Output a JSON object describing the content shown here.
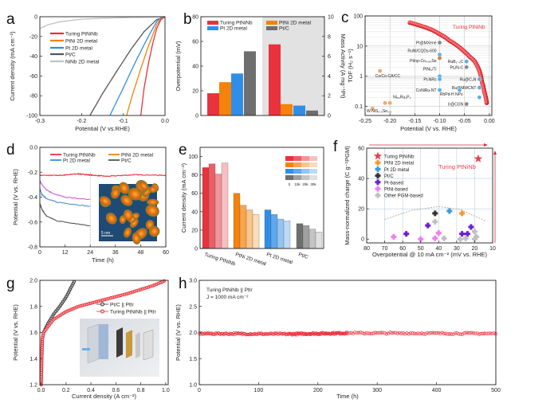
{
  "panel_labels": [
    "a",
    "b",
    "c",
    "d",
    "e",
    "f",
    "g",
    "h"
  ],
  "colors": {
    "turing": "#e8323c",
    "ptni": "#f5820a",
    "pt2d": "#2f8ee8",
    "ptc": "#6e6e6e",
    "ninb": "#c2c2c2"
  },
  "chart_data": [
    {
      "panel": "a",
      "type": "line",
      "xlabel": "Potential (V vs.RHE)",
      "ylabel": "Current density  (mA cm⁻²)",
      "xlim": [
        -0.3,
        0
      ],
      "ylim": [
        -100,
        0
      ],
      "xticks": [
        "-0.3",
        "-0.2",
        "-0.1",
        "0.0"
      ],
      "yticks": [
        "0",
        "-20",
        "-40",
        "-60",
        "-80",
        "-100"
      ],
      "legend": "top-left",
      "series": [
        {
          "name": "Turing PtNiNb",
          "color": "#e8323c",
          "points": [
            [
              0,
              0
            ],
            [
              -0.01,
              -3
            ],
            [
              -0.02,
              -12
            ],
            [
              -0.03,
              -28
            ],
            [
              -0.04,
              -48
            ],
            [
              -0.05,
              -72
            ],
            [
              -0.058,
              -100
            ]
          ]
        },
        {
          "name": "PtNi 2D metal",
          "color": "#f5820a",
          "points": [
            [
              0,
              0
            ],
            [
              -0.01,
              -2
            ],
            [
              -0.02,
              -8
            ],
            [
              -0.04,
              -30
            ],
            [
              -0.06,
              -55
            ],
            [
              -0.08,
              -82
            ],
            [
              -0.092,
              -100
            ]
          ]
        },
        {
          "name": "Pt 2D metal",
          "color": "#2f8ee8",
          "points": [
            [
              0,
              0
            ],
            [
              -0.01,
              -1
            ],
            [
              -0.02,
              -5
            ],
            [
              -0.04,
              -20
            ],
            [
              -0.07,
              -45
            ],
            [
              -0.1,
              -72
            ],
            [
              -0.132,
              -100
            ]
          ]
        },
        {
          "name": "Pt/C",
          "color": "#555555",
          "points": [
            [
              0,
              0
            ],
            [
              -0.02,
              -3
            ],
            [
              -0.05,
              -15
            ],
            [
              -0.08,
              -32
            ],
            [
              -0.12,
              -58
            ],
            [
              -0.15,
              -78
            ],
            [
              -0.18,
              -100
            ]
          ]
        },
        {
          "name": "NiNb 2D metal",
          "color": "#c2c2c2",
          "points": [
            [
              0,
              0
            ],
            [
              -0.05,
              -0.5
            ],
            [
              -0.1,
              -1
            ],
            [
              -0.15,
              -1.5
            ],
            [
              -0.2,
              -2.5
            ],
            [
              -0.25,
              -5
            ],
            [
              -0.28,
              -8
            ],
            [
              -0.3,
              -12
            ]
          ]
        }
      ]
    },
    {
      "panel": "b",
      "type": "bar",
      "ylabel": "Overpotential (mV)",
      "y2label": "Mass Activity (A mg⁻¹Pt)",
      "ylim": [
        0,
        80
      ],
      "y2lim": [
        0,
        10
      ],
      "yticks": [
        "0",
        "20",
        "40",
        "60",
        "80"
      ],
      "y2ticks": [
        "0",
        "2",
        "4",
        "6",
        "8",
        "10"
      ],
      "categories": [
        "Turing PtNiNb",
        "PtNi 2D metal",
        "Pt 2D metal",
        "Pt/C"
      ],
      "colors": [
        "#e8323c",
        "#f5820a",
        "#2f8ee8",
        "#6e6e6e"
      ],
      "overpotential": [
        18,
        27,
        34,
        52
      ],
      "mass_activity": [
        7.2,
        1.15,
        1.0,
        0.5
      ],
      "legend": "top"
    },
    {
      "panel": "c",
      "type": "scatter",
      "xlabel": "Potential (V vs. RHE)",
      "ylabel": "TOF (H₂ s⁻¹)",
      "xlim": [
        -0.25,
        0.005
      ],
      "ylim": [
        0.05,
        100
      ],
      "yscale": "log",
      "grid": true,
      "xticks": [
        "-0.25",
        "-0.20",
        "-0.15",
        "-0.10",
        "-0.05",
        "0.00"
      ],
      "yticks": [
        "0.1",
        "1",
        "10",
        "100"
      ],
      "main_series": {
        "name": "Turing PtNiNb",
        "color": "#e8323c",
        "points": [
          [
            -0.16,
            60
          ],
          [
            -0.14,
            48
          ],
          [
            -0.12,
            37
          ],
          [
            -0.1,
            25
          ],
          [
            -0.08,
            15
          ],
          [
            -0.06,
            9
          ],
          [
            -0.05,
            6.5
          ],
          [
            -0.04,
            4.5
          ],
          [
            -0.03,
            3.2
          ],
          [
            -0.025,
            2.3
          ],
          [
            -0.02,
            1.5
          ],
          [
            -0.015,
            0.65
          ],
          [
            -0.01,
            0.3
          ],
          [
            -0.005,
            0.12
          ]
        ]
      },
      "references": [
        {
          "name": "Pt@MXene",
          "x": -0.1,
          "y": 13,
          "color": "#8a8a8a"
        },
        {
          "name": "RuNi/CQDs-600",
          "x": -0.1,
          "y": 5.2,
          "color": "#5ab0e6"
        },
        {
          "name": "Pt/np-Co₀.₈₅Se",
          "x": -0.1,
          "y": 4,
          "color": "#c8824a"
        },
        {
          "name": "RuB₁₋ₓC",
          "x": -0.046,
          "y": 3.1,
          "color": "#5ab0e6"
        },
        {
          "name": "Pt₁/N-C",
          "x": -0.046,
          "y": 2,
          "color": "#8a8a8a"
        },
        {
          "name": "PtNi₂/Ti",
          "x": -0.1,
          "y": 1.0,
          "color": "#5ab0e6"
        },
        {
          "name": "Pt-NRs",
          "x": -0.1,
          "y": 0.8,
          "color": "#5ab0e6"
        },
        {
          "name": "Ru@C₂N",
          "x": -0.02,
          "y": 0.8,
          "color": "#5ab0e6"
        },
        {
          "name": "Ru@MWCNT",
          "x": -0.02,
          "y": 0.42,
          "color": "#5ab0e6"
        },
        {
          "name": "CoNiRu-NT",
          "x": -0.1,
          "y": 0.35,
          "color": "#5ab0e6"
        },
        {
          "name": "RhPd-H NPs",
          "x": -0.06,
          "y": 0.35,
          "color": "#5ab0e6"
        },
        {
          "name": "Ir@CON",
          "x": -0.046,
          "y": 0.12,
          "color": "#8a8a8a"
        },
        {
          "name": "",
          "x": -0.02,
          "y": 0.2,
          "color": "#5ab0e6"
        },
        {
          "name": "Co/Co-CA/CC",
          "x": -0.22,
          "y": 1.5,
          "color": "#f0a868"
        },
        {
          "name": "Ni₅₂Ru₂P₂",
          "x": -0.2,
          "y": 0.13,
          "color": "#f0a868"
        },
        {
          "name": "",
          "x": -0.21,
          "y": 0.13,
          "color": "#f0a868"
        },
        {
          "name": "W-NiS₀.₅Se₀.₅",
          "x": -0.235,
          "y": 0.085,
          "color": "#f0a868"
        }
      ]
    },
    {
      "panel": "d",
      "type": "line",
      "xlabel": "Time (h)",
      "ylabel": "Potential (V vs. RHE)",
      "xlim": [
        0,
        60
      ],
      "ylim": [
        -0.8,
        0
      ],
      "xticks": [
        "0",
        "12",
        "24",
        "36",
        "48",
        "60"
      ],
      "yticks": [
        "0.0",
        "-0.2",
        "-0.4",
        "-0.6",
        "-0.8"
      ],
      "legend": "top",
      "inset_scale_bar": "5 nm",
      "series": [
        {
          "name": "Turing PtNiNb",
          "color": "#e8323c",
          "legend_color": "#e8323c",
          "points": [
            [
              0,
              -0.225
            ],
            [
              10,
              -0.225
            ],
            [
              18,
              -0.213
            ],
            [
              24,
              -0.222
            ],
            [
              32,
              -0.233
            ],
            [
              45,
              -0.22
            ],
            [
              60,
              -0.225
            ]
          ]
        },
        {
          "name": "PtNi 2D metal",
          "color": "#d95bd9",
          "legend_color": "#f5820a",
          "points": [
            [
              0,
              -0.27
            ],
            [
              1,
              -0.3
            ],
            [
              3,
              -0.34
            ],
            [
              6,
              -0.37
            ],
            [
              12,
              -0.4
            ],
            [
              24,
              -0.42
            ]
          ]
        },
        {
          "name": "Pt 2D metal",
          "color": "#4a8fd8",
          "legend_color": "#2f8ee8",
          "points": [
            [
              0,
              -0.33
            ],
            [
              1,
              -0.38
            ],
            [
              3,
              -0.41
            ],
            [
              8,
              -0.44
            ],
            [
              24,
              -0.475
            ]
          ]
        },
        {
          "name": "Pt/C",
          "color": "#555555",
          "legend_color": "#555555",
          "points": [
            [
              0,
              -0.45
            ],
            [
              1,
              -0.5
            ],
            [
              3,
              -0.55
            ],
            [
              8,
              -0.59
            ],
            [
              24,
              -0.63
            ]
          ]
        }
      ]
    },
    {
      "panel": "e",
      "type": "bar",
      "ylabel": "Current density (mA cm⁻²)",
      "ylim": [
        0,
        110
      ],
      "yticks": [
        "0",
        "20",
        "40",
        "60",
        "80",
        "100"
      ],
      "categories": [
        "Turing PtNiNb",
        "PtNi 2D metal",
        "Pt 2D metal",
        "Pt/C"
      ],
      "legend_labels": [
        "0",
        "10k",
        "20k",
        "30k"
      ],
      "shades": [
        [
          "#e8323c",
          "#ec5e66",
          "#f2939a",
          "#f7bfc2"
        ],
        [
          "#f5820a",
          "#f8a54e",
          "#fbc48a",
          "#fcdcb8"
        ],
        [
          "#2f8ee8",
          "#5ea8ec",
          "#93c4f2",
          "#bcdaf7"
        ],
        [
          "#6e6e6e",
          "#a0a0a0",
          "#c4c4c4",
          "#e0e0e0"
        ]
      ],
      "values": [
        [
          88,
          92,
          81,
          93
        ],
        [
          60,
          47,
          42,
          37
        ],
        [
          42,
          37,
          32,
          30
        ],
        [
          27,
          25,
          21,
          18
        ]
      ]
    },
    {
      "panel": "f",
      "type": "scatter",
      "xlabel": "Overpotential @ 10 mA cm⁻² (mV vs. RHE)",
      "ylabel": "Mass-normalized charge (C g⁻¹PGM)",
      "xlim": [
        80,
        10
      ],
      "ylim": [
        -2.5,
        60
      ],
      "grid": true,
      "xticks": [
        "80",
        "70",
        "60",
        "50",
        "40",
        "30",
        "20",
        "10"
      ],
      "yticks": [
        "0",
        "20",
        "40",
        "60"
      ],
      "annotation": "Turing PtNiNb",
      "legend": "top-left",
      "trend": [
        [
          70,
          13
        ],
        [
          55,
          19
        ],
        [
          40,
          21.5
        ],
        [
          28,
          19.5
        ],
        [
          14,
          12
        ]
      ],
      "series": [
        {
          "name": "Turing PtNiNb",
          "color": "#e8404a",
          "marker": "star",
          "points": [
            [
              18,
              53
            ]
          ]
        },
        {
          "name": "PtNi 2D metal",
          "color": "#f59a2a",
          "marker": "diamond",
          "points": [
            [
              27,
              17
            ]
          ]
        },
        {
          "name": "Pt 2D metal",
          "color": "#3b9ae1",
          "marker": "diamond",
          "points": [
            [
              34,
              18.5
            ]
          ]
        },
        {
          "name": "Pt/C",
          "color": "#333333",
          "marker": "diamond",
          "points": [
            [
              42,
              17
            ]
          ]
        },
        {
          "name": "Pt-based",
          "color": "#6a1fd0",
          "marker": "diamond",
          "points": [
            [
              58,
              3.5
            ],
            [
              46,
              9
            ],
            [
              27,
              3.5
            ],
            [
              24,
              3.5
            ],
            [
              22,
              8
            ]
          ]
        },
        {
          "name": "PtNi-based",
          "color": "#f07ef0",
          "marker": "diamond",
          "points": [
            [
              65,
              1.5
            ],
            [
              50,
              0
            ],
            [
              42,
              0.5
            ],
            [
              40,
              4
            ]
          ]
        },
        {
          "name": "Other PGM-based",
          "color": "#c0c0c0",
          "marker": "diamond",
          "points": [
            [
              42,
              11.5
            ],
            [
              37,
              0.5
            ],
            [
              28,
              0
            ],
            [
              25,
              0.5
            ],
            [
              20,
              5
            ],
            [
              20,
              0
            ],
            [
              19,
              1.5
            ]
          ]
        }
      ]
    },
    {
      "panel": "g",
      "type": "scatter",
      "xlabel": "Current density   (A cm⁻²)",
      "ylabel": "Potential (V vs. RHE)",
      "xlim": [
        -0.01,
        1.02
      ],
      "ylim": [
        1.2,
        2.0
      ],
      "xticks": [
        "0.0",
        "0.2",
        "0.4",
        "0.6",
        "0.8",
        "1.0"
      ],
      "yticks": [
        "1.2",
        "1.4",
        "1.6",
        "1.8",
        "2.0"
      ],
      "legend": "right",
      "series": [
        {
          "name": "Pt/C || PtIr",
          "color": "#333333",
          "points": [
            [
              0,
              1.2
            ],
            [
              0.005,
              1.4
            ],
            [
              0.01,
              1.55
            ],
            [
              0.02,
              1.6
            ],
            [
              0.05,
              1.66
            ],
            [
              0.1,
              1.74
            ],
            [
              0.15,
              1.8
            ],
            [
              0.2,
              1.87
            ],
            [
              0.27,
              2.0
            ]
          ]
        },
        {
          "name": "Turing PtNiNb || PtIr",
          "color": "#e8323c",
          "points": [
            [
              0,
              1.2
            ],
            [
              0.005,
              1.4
            ],
            [
              0.01,
              1.55
            ],
            [
              0.02,
              1.6
            ],
            [
              0.05,
              1.64
            ],
            [
              0.1,
              1.7
            ],
            [
              0.2,
              1.76
            ],
            [
              0.3,
              1.8
            ],
            [
              0.5,
              1.85
            ],
            [
              0.7,
              1.9
            ],
            [
              0.9,
              1.96
            ],
            [
              1.0,
              2.0
            ]
          ]
        }
      ]
    },
    {
      "panel": "h",
      "type": "scatter",
      "xlabel": "Time (h)",
      "ylabel": "Potential (V vs. RHE)",
      "xlim": [
        0,
        500
      ],
      "ylim": [
        1.0,
        3.0
      ],
      "xticks": [
        "0",
        "100",
        "200",
        "300",
        "400",
        "500"
      ],
      "yticks": [
        "1.0",
        "1.5",
        "2.0",
        "2.5",
        "3.0"
      ],
      "annotation": [
        "Turing PtNiNb || PtIr",
        "J = 1000 mA cm⁻²"
      ],
      "series": [
        {
          "name": "Turing PtNiNb || PtIr",
          "color": "#e8323c",
          "points": [
            [
              0,
              1.98
            ],
            [
              150,
              1.97
            ],
            [
              250,
              1.99
            ],
            [
              500,
              1.98
            ]
          ]
        }
      ]
    }
  ]
}
